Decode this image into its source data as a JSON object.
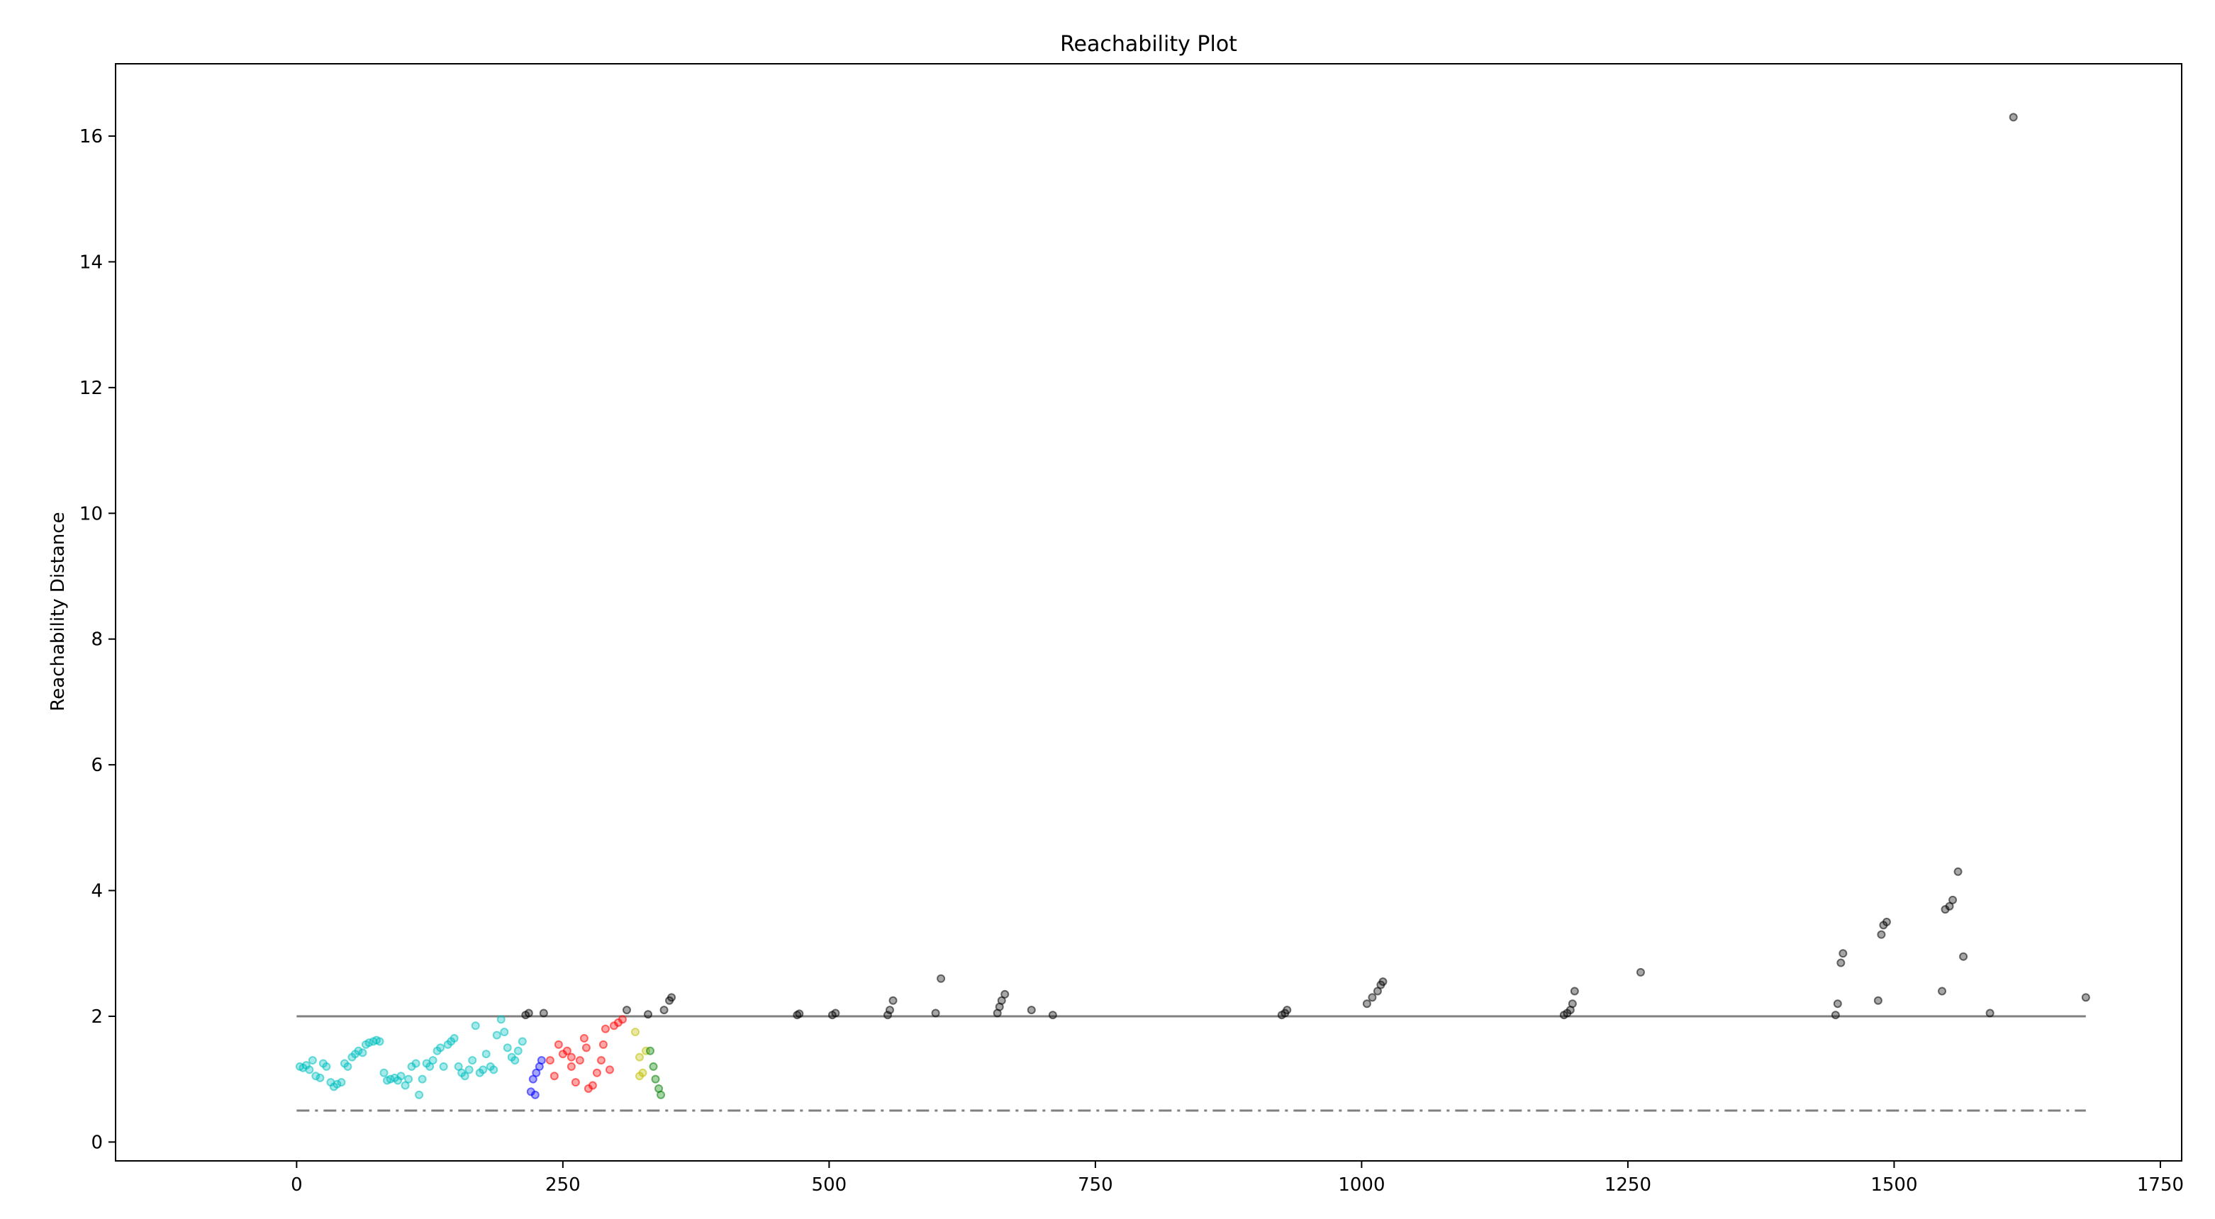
{
  "chart_data": {
    "type": "scatter",
    "title": "Reachability Plot",
    "xlabel": "",
    "ylabel": "Reachability Distance",
    "xlim": [
      -170,
      1770
    ],
    "ylim": [
      -0.3,
      17.15
    ],
    "xticks": [
      0,
      250,
      500,
      750,
      1000,
      1250,
      1500,
      1750
    ],
    "yticks": [
      0,
      2,
      4,
      6,
      8,
      10,
      12,
      14,
      16
    ],
    "grid": false,
    "legend": "none",
    "reference_lines": [
      {
        "name": "threshold-2",
        "y": 2.0,
        "x": [
          0,
          1680
        ],
        "style": "solid",
        "color": "#808080"
      },
      {
        "name": "threshold-0.5",
        "y": 0.5,
        "x": [
          0,
          1680
        ],
        "style": "dashdot",
        "color": "#808080"
      }
    ],
    "series": [
      {
        "color": "#00bfbf",
        "points": [
          [
            3,
            1.2
          ],
          [
            6,
            1.18
          ],
          [
            9,
            1.22
          ],
          [
            12,
            1.15
          ],
          [
            15,
            1.3
          ],
          [
            18,
            1.05
          ],
          [
            22,
            1.02
          ],
          [
            25,
            1.25
          ],
          [
            28,
            1.2
          ],
          [
            32,
            0.95
          ],
          [
            35,
            0.88
          ],
          [
            38,
            0.92
          ],
          [
            42,
            0.95
          ],
          [
            45,
            1.25
          ],
          [
            48,
            1.2
          ],
          [
            52,
            1.35
          ],
          [
            55,
            1.4
          ],
          [
            58,
            1.45
          ],
          [
            62,
            1.42
          ],
          [
            65,
            1.55
          ],
          [
            68,
            1.58
          ],
          [
            72,
            1.6
          ],
          [
            75,
            1.62
          ],
          [
            78,
            1.6
          ],
          [
            82,
            1.1
          ],
          [
            85,
            0.98
          ],
          [
            88,
            1.0
          ],
          [
            92,
            1.02
          ],
          [
            95,
            0.98
          ],
          [
            98,
            1.05
          ],
          [
            102,
            0.9
          ],
          [
            105,
            1.0
          ],
          [
            108,
            1.2
          ],
          [
            112,
            1.25
          ],
          [
            115,
            0.75
          ],
          [
            118,
            1.0
          ],
          [
            122,
            1.25
          ],
          [
            125,
            1.2
          ],
          [
            128,
            1.3
          ],
          [
            132,
            1.45
          ],
          [
            135,
            1.5
          ],
          [
            138,
            1.2
          ],
          [
            142,
            1.55
          ],
          [
            145,
            1.6
          ],
          [
            148,
            1.65
          ],
          [
            152,
            1.2
          ],
          [
            155,
            1.1
          ],
          [
            158,
            1.05
          ],
          [
            162,
            1.15
          ],
          [
            165,
            1.3
          ],
          [
            168,
            1.85
          ],
          [
            172,
            1.1
          ],
          [
            175,
            1.15
          ],
          [
            178,
            1.4
          ],
          [
            182,
            1.2
          ],
          [
            185,
            1.15
          ],
          [
            188,
            1.7
          ],
          [
            192,
            1.95
          ],
          [
            195,
            1.75
          ],
          [
            198,
            1.5
          ],
          [
            202,
            1.35
          ],
          [
            205,
            1.3
          ],
          [
            208,
            1.45
          ],
          [
            212,
            1.6
          ]
        ]
      },
      {
        "color": "#000000",
        "points": [
          [
            215,
            2.02
          ],
          [
            218,
            2.05
          ],
          [
            232,
            2.05
          ],
          [
            310,
            2.1
          ],
          [
            330,
            2.03
          ],
          [
            345,
            2.1
          ],
          [
            350,
            2.25
          ],
          [
            352,
            2.3
          ],
          [
            470,
            2.02
          ],
          [
            472,
            2.04
          ],
          [
            503,
            2.02
          ],
          [
            506,
            2.05
          ],
          [
            555,
            2.02
          ],
          [
            557,
            2.1
          ],
          [
            560,
            2.25
          ],
          [
            600,
            2.05
          ],
          [
            605,
            2.6
          ],
          [
            658,
            2.05
          ],
          [
            660,
            2.15
          ],
          [
            662,
            2.25
          ],
          [
            665,
            2.35
          ],
          [
            690,
            2.1
          ],
          [
            710,
            2.02
          ],
          [
            925,
            2.02
          ],
          [
            928,
            2.05
          ],
          [
            930,
            2.1
          ],
          [
            1005,
            2.2
          ],
          [
            1010,
            2.3
          ],
          [
            1015,
            2.4
          ],
          [
            1018,
            2.5
          ],
          [
            1020,
            2.55
          ],
          [
            1190,
            2.02
          ],
          [
            1193,
            2.05
          ],
          [
            1196,
            2.1
          ],
          [
            1198,
            2.2
          ],
          [
            1200,
            2.4
          ],
          [
            1262,
            2.7
          ],
          [
            1445,
            2.02
          ],
          [
            1447,
            2.2
          ],
          [
            1450,
            2.85
          ],
          [
            1452,
            3.0
          ],
          [
            1485,
            2.25
          ],
          [
            1488,
            3.3
          ],
          [
            1490,
            3.45
          ],
          [
            1493,
            3.5
          ],
          [
            1545,
            2.4
          ],
          [
            1548,
            3.7
          ],
          [
            1552,
            3.75
          ],
          [
            1555,
            3.85
          ],
          [
            1560,
            4.3
          ],
          [
            1565,
            2.95
          ],
          [
            1590,
            2.05
          ],
          [
            1612,
            16.3
          ],
          [
            1680,
            2.3
          ]
        ]
      },
      {
        "color": "#0000ff",
        "points": [
          [
            220,
            0.8
          ],
          [
            222,
            1.0
          ],
          [
            225,
            1.1
          ],
          [
            228,
            1.2
          ],
          [
            230,
            1.3
          ],
          [
            224,
            0.75
          ]
        ]
      },
      {
        "color": "#ff0000",
        "points": [
          [
            238,
            1.3
          ],
          [
            242,
            1.05
          ],
          [
            246,
            1.55
          ],
          [
            250,
            1.4
          ],
          [
            254,
            1.45
          ],
          [
            258,
            1.35
          ],
          [
            262,
            0.95
          ],
          [
            266,
            1.3
          ],
          [
            270,
            1.65
          ],
          [
            274,
            0.85
          ],
          [
            278,
            0.9
          ],
          [
            282,
            1.1
          ],
          [
            286,
            1.3
          ],
          [
            290,
            1.8
          ],
          [
            294,
            1.15
          ],
          [
            298,
            1.85
          ],
          [
            302,
            1.9
          ],
          [
            306,
            1.95
          ],
          [
            258,
            1.2
          ],
          [
            272,
            1.5
          ],
          [
            288,
            1.55
          ]
        ]
      },
      {
        "color": "#bfbf00",
        "points": [
          [
            318,
            1.75
          ],
          [
            322,
            1.35
          ],
          [
            325,
            1.1
          ],
          [
            328,
            1.45
          ],
          [
            322,
            1.05
          ]
        ]
      },
      {
        "color": "#008000",
        "points": [
          [
            332,
            1.45
          ],
          [
            335,
            1.2
          ],
          [
            337,
            1.0
          ],
          [
            340,
            0.85
          ],
          [
            342,
            0.75
          ]
        ]
      }
    ]
  }
}
